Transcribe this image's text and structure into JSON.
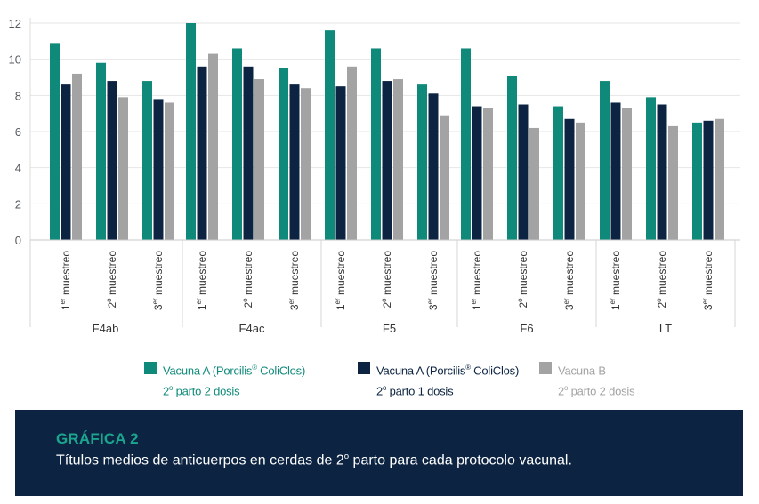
{
  "chart_data": {
    "type": "bar",
    "ylim": [
      0,
      12
    ],
    "yticks": [
      "0",
      "2",
      "4",
      "6",
      "8",
      "10",
      "12"
    ],
    "grid": true,
    "legend_position": "bottom",
    "groups": [
      {
        "name": "F4ab",
        "samplings": [
          {
            "num": "1",
            "sup": "er",
            "label": "muestreo"
          },
          {
            "num": "2",
            "sup": "o",
            "label": "muestreo"
          },
          {
            "num": "3",
            "sup": "er",
            "label": "muestreo"
          }
        ]
      },
      {
        "name": "F4ac",
        "samplings": [
          {
            "num": "1",
            "sup": "er",
            "label": "muestreo"
          },
          {
            "num": "2",
            "sup": "o",
            "label": "muestreo"
          },
          {
            "num": "3",
            "sup": "er",
            "label": "muestreo"
          }
        ]
      },
      {
        "name": "F5",
        "samplings": [
          {
            "num": "1",
            "sup": "er",
            "label": "muestreo"
          },
          {
            "num": "2",
            "sup": "o",
            "label": "muestreo"
          },
          {
            "num": "3",
            "sup": "er",
            "label": "muestreo"
          }
        ]
      },
      {
        "name": "F6",
        "samplings": [
          {
            "num": "1",
            "sup": "er",
            "label": "muestreo"
          },
          {
            "num": "2",
            "sup": "o",
            "label": "muestreo"
          },
          {
            "num": "3",
            "sup": "er",
            "label": "muestreo"
          }
        ]
      },
      {
        "name": "LT",
        "samplings": [
          {
            "num": "1",
            "sup": "er",
            "label": "muestreo"
          },
          {
            "num": "2",
            "sup": "o",
            "label": "muestreo"
          },
          {
            "num": "3",
            "sup": "er",
            "label": "muestreo"
          }
        ]
      }
    ],
    "series": [
      {
        "color": "#0f8a7a",
        "values": [
          10.9,
          9.8,
          8.8,
          12.0,
          10.6,
          9.5,
          11.6,
          10.6,
          8.6,
          10.6,
          9.1,
          7.4,
          8.8,
          7.9,
          6.5
        ]
      },
      {
        "color": "#0c2442",
        "values": [
          8.6,
          8.8,
          7.8,
          9.6,
          9.6,
          8.6,
          8.5,
          8.8,
          8.1,
          7.4,
          7.5,
          6.7,
          7.6,
          7.5,
          6.6
        ]
      },
      {
        "color": "#a3a3a3",
        "values": [
          9.2,
          7.9,
          7.6,
          10.3,
          8.9,
          8.4,
          9.6,
          8.9,
          6.9,
          7.3,
          6.2,
          6.5,
          7.3,
          6.3,
          6.7
        ]
      }
    ],
    "legend": [
      {
        "line1_pre": "Vacuna A (Porcilis",
        "line1_sup": "®",
        "line1_post": " ColiClos)",
        "line2_num": "2",
        "line2_sup": "o",
        "line2_post": " parto 2 dosis",
        "swatch": "#0f8a7a",
        "text_color": "#0f8a7a"
      },
      {
        "line1_pre": "Vacuna A (Porcilis",
        "line1_sup": "®",
        "line1_post": " ColiClos)",
        "line2_num": "2",
        "line2_sup": "o",
        "line2_post": " parto 1 dosis",
        "swatch": "#0c2442",
        "text_color": "#0c2442"
      },
      {
        "line1_pre": "Vacuna B",
        "line1_sup": "",
        "line1_post": "",
        "line2_num": "2",
        "line2_sup": "o",
        "line2_post": " parto 2 dosis",
        "swatch": "#a3a3a3",
        "text_color": "#a3a3a3"
      }
    ]
  },
  "caption": {
    "title": "GRÁFICA 2",
    "text_pre": "Títulos medios de anticuerpos en cerdas de 2",
    "text_sup": "o",
    "text_post": " parto para cada protocolo vacunal."
  }
}
